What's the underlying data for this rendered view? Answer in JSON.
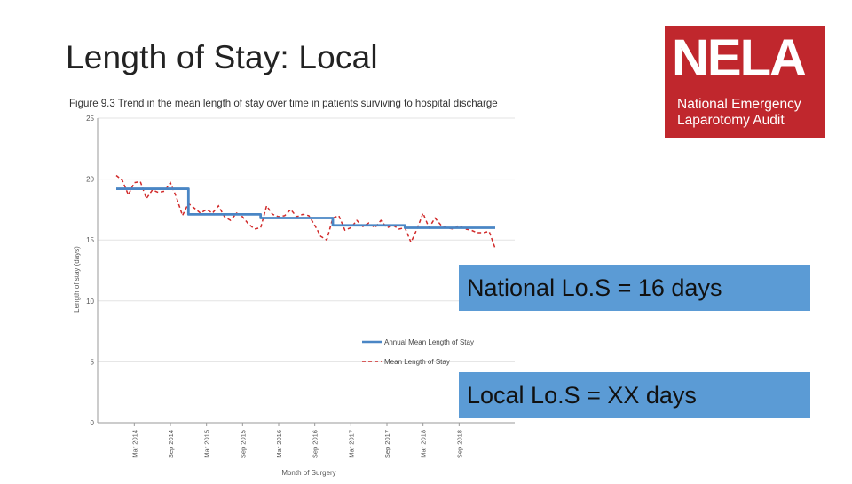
{
  "slide": {
    "title": "Length of Stay: Local",
    "callouts": [
      "National Lo.S = 16 days",
      "Local Lo.S = XX days"
    ]
  },
  "logo": {
    "mark": "NELA",
    "line1": "National Emergency",
    "line2": "Laparotomy Audit",
    "background_color": "#c0272d",
    "text_color": "#ffffff"
  },
  "chart_data": {
    "type": "line",
    "title": "Figure 9.3  Trend in the mean length of stay over time in patients surviving to hospital discharge",
    "xlabel": "Month of Surgery",
    "ylabel": "Length of stay (days)",
    "ylim": [
      0,
      25
    ],
    "yticks": [
      0,
      5,
      10,
      15,
      20,
      25
    ],
    "x_start": "Dec 2013",
    "x_ticks": [
      "Mar 2014",
      "Sep 2014",
      "Mar 2015",
      "Sep 2015",
      "Mar 2016",
      "Sep 2016",
      "Mar 2017",
      "Sep 2017",
      "Mar 2018",
      "Sep 2018"
    ],
    "x_tick_months": [
      "2014-03",
      "2014-09",
      "2015-03",
      "2015-09",
      "2016-03",
      "2016-09",
      "2017-03",
      "2017-09",
      "2018-03",
      "2018-09"
    ],
    "grid": true,
    "legend_placement": "bottom-right",
    "series": [
      {
        "name": "Annual Mean Length of Stay",
        "style": "solid",
        "color": "#4a86c5",
        "segments": [
          {
            "from": "2013-12",
            "to": "2014-11",
            "value": 19.2
          },
          {
            "from": "2014-12",
            "to": "2015-11",
            "value": 17.1
          },
          {
            "from": "2015-12",
            "to": "2016-11",
            "value": 16.8
          },
          {
            "from": "2016-12",
            "to": "2017-11",
            "value": 16.2
          },
          {
            "from": "2017-12",
            "to": "2018-11",
            "value": 16.0
          }
        ]
      },
      {
        "name": "Mean Length of Stay",
        "style": "dashed",
        "color": "#d12a2a",
        "start_month": "2013-12",
        "values": [
          20.3,
          19.9,
          18.7,
          19.7,
          19.8,
          18.4,
          19.1,
          18.9,
          19.0,
          19.7,
          18.5,
          17.0,
          18.0,
          17.6,
          17.2,
          17.5,
          17.2,
          17.8,
          16.9,
          16.6,
          17.2,
          16.9,
          16.3,
          15.9,
          16.0,
          17.8,
          17.1,
          16.9,
          17.0,
          17.5,
          16.9,
          17.1,
          17.0,
          16.2,
          15.3,
          15.0,
          16.8,
          17.0,
          15.8,
          16.0,
          16.6,
          16.1,
          16.4,
          16.0,
          16.6,
          16.0,
          16.2,
          15.9,
          16.0,
          14.8,
          15.9,
          17.2,
          16.0,
          16.8,
          16.2,
          16.0,
          15.9,
          16.2,
          15.9,
          15.8,
          15.6,
          15.6,
          15.7,
          14.3
        ]
      }
    ]
  }
}
